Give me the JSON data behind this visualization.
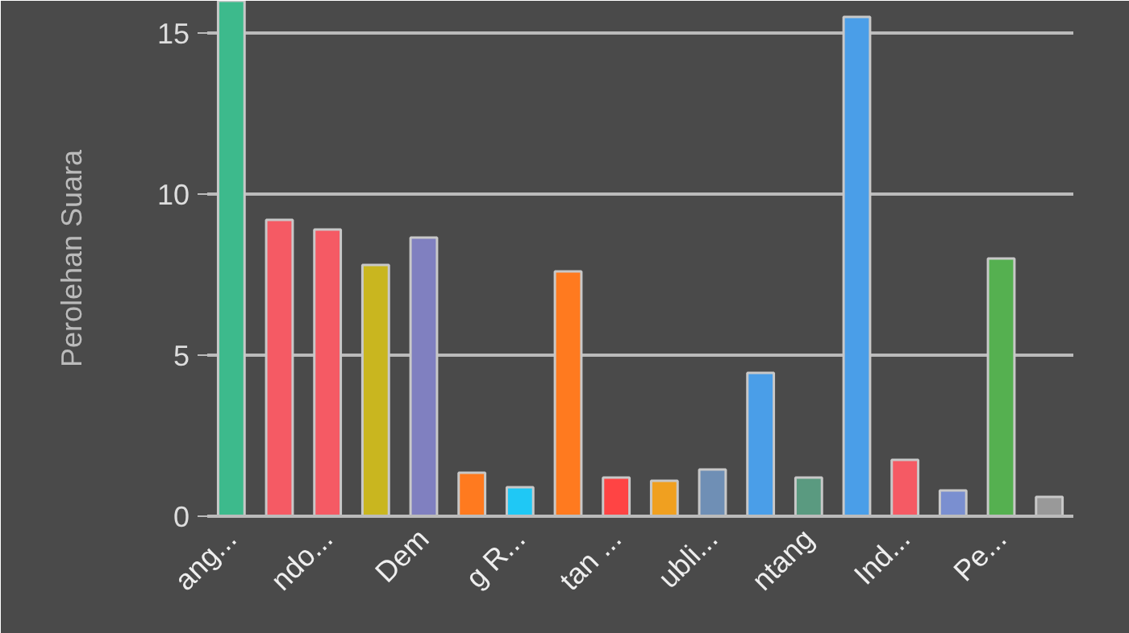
{
  "chart_data": {
    "type": "bar",
    "ylabel": "Perolehan Suara",
    "categories": [
      "ang...",
      null,
      "ndo...",
      null,
      "Dem",
      null,
      "g R...",
      null,
      "tan ...",
      null,
      "ubli...",
      null,
      "ntang",
      null,
      "Ind...",
      null,
      "Pe...",
      null
    ],
    "values": [
      16,
      9.2,
      8.9,
      7.8,
      8.65,
      1.35,
      0.9,
      7.6,
      1.2,
      1.1,
      1.45,
      4.45,
      1.2,
      15.5,
      1.75,
      0.8,
      8.0,
      0.6
    ],
    "colors": [
      "#3dba8c",
      "#f55a64",
      "#f55a64",
      "#c9b61f",
      "#8080c0",
      "#ff7a1f",
      "#1fc8f5",
      "#ff7a1f",
      "#ff4444",
      "#f0a020",
      "#6f8fb5",
      "#4a9ee8",
      "#5a9a80",
      "#4a9ee8",
      "#f55a64",
      "#7a8fd0",
      "#55b050",
      "#999999"
    ],
    "ylim": [
      0,
      16
    ],
    "yticks": [
      0,
      5,
      10,
      15
    ],
    "grid": "y"
  }
}
